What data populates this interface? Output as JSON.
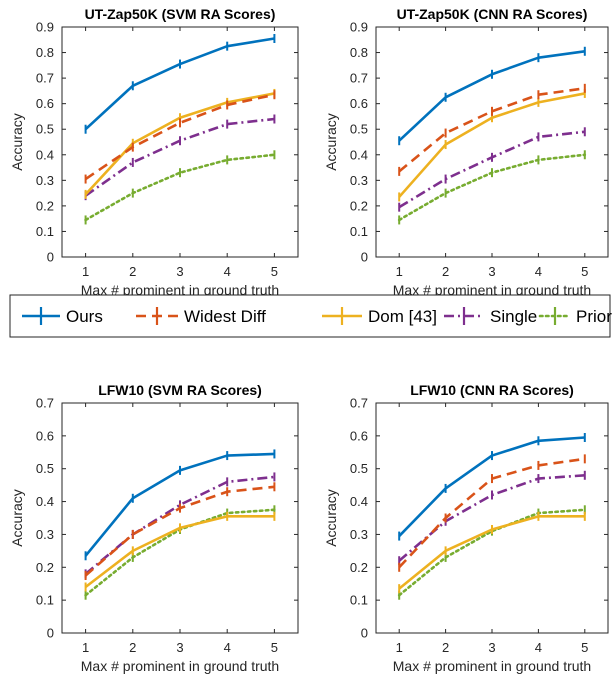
{
  "legend": {
    "items": [
      {
        "label": "Ours",
        "color": "#0072BD",
        "dash": "solid"
      },
      {
        "label": "Widest Diff",
        "color": "#D95319",
        "dash": "dashed"
      },
      {
        "label": "Dom [43]",
        "color": "#EDB120",
        "dash": "solid"
      },
      {
        "label": "Single",
        "color": "#7E2F8E",
        "dash": "dashdot"
      },
      {
        "label": "Prior",
        "color": "#77AC30",
        "dash": "dotted"
      }
    ]
  },
  "chart_data": [
    {
      "type": "line",
      "title": "UT-Zap50K (SVM RA Scores)",
      "xlabel": "Max # prominent in ground truth",
      "ylabel": "Accuracy",
      "x": [
        1,
        2,
        3,
        4,
        5
      ],
      "xlim": [
        0.5,
        5.5
      ],
      "ylim": [
        0,
        0.9
      ],
      "yticks": [
        "0",
        "0.1",
        "0.2",
        "0.3",
        "0.4",
        "0.5",
        "0.6",
        "0.7",
        "0.8",
        "0.9"
      ],
      "xticks": [
        "1",
        "2",
        "3",
        "4",
        "5"
      ],
      "grid": false,
      "series": [
        {
          "name": "Ours",
          "values": [
            0.5,
            0.67,
            0.755,
            0.825,
            0.855
          ]
        },
        {
          "name": "Widest Diff",
          "values": [
            0.305,
            0.43,
            0.525,
            0.595,
            0.635
          ]
        },
        {
          "name": "Dom [43]",
          "values": [
            0.245,
            0.445,
            0.545,
            0.605,
            0.64
          ]
        },
        {
          "name": "Single",
          "values": [
            0.24,
            0.37,
            0.455,
            0.52,
            0.54
          ]
        },
        {
          "name": "Prior",
          "values": [
            0.145,
            0.25,
            0.33,
            0.38,
            0.4
          ]
        }
      ]
    },
    {
      "type": "line",
      "title": "UT-Zap50K (CNN RA Scores)",
      "xlabel": "Max # prominent in ground truth",
      "ylabel": "Accuracy",
      "x": [
        1,
        2,
        3,
        4,
        5
      ],
      "xlim": [
        0.5,
        5.5
      ],
      "ylim": [
        0,
        0.9
      ],
      "yticks": [
        "0",
        "0.1",
        "0.2",
        "0.3",
        "0.4",
        "0.5",
        "0.6",
        "0.7",
        "0.8",
        "0.9"
      ],
      "xticks": [
        "1",
        "2",
        "3",
        "4",
        "5"
      ],
      "grid": false,
      "series": [
        {
          "name": "Ours",
          "values": [
            0.455,
            0.625,
            0.715,
            0.78,
            0.805
          ]
        },
        {
          "name": "Widest Diff",
          "values": [
            0.335,
            0.485,
            0.57,
            0.635,
            0.66
          ]
        },
        {
          "name": "Dom [43]",
          "values": [
            0.235,
            0.44,
            0.545,
            0.605,
            0.64
          ]
        },
        {
          "name": "Single",
          "values": [
            0.195,
            0.305,
            0.39,
            0.47,
            0.49
          ]
        },
        {
          "name": "Prior",
          "values": [
            0.145,
            0.25,
            0.33,
            0.38,
            0.4
          ]
        }
      ]
    },
    {
      "type": "line",
      "title": "LFW10 (SVM RA Scores)",
      "xlabel": "Max # prominent in ground truth",
      "ylabel": "Accuracy",
      "x": [
        1,
        2,
        3,
        4,
        5
      ],
      "xlim": [
        0.5,
        5.5
      ],
      "ylim": [
        0,
        0.7
      ],
      "yticks": [
        "0",
        "0.1",
        "0.2",
        "0.3",
        "0.4",
        "0.5",
        "0.6",
        "0.7"
      ],
      "xticks": [
        "1",
        "2",
        "3",
        "4",
        "5"
      ],
      "grid": false,
      "series": [
        {
          "name": "Ours",
          "values": [
            0.235,
            0.41,
            0.495,
            0.54,
            0.545
          ]
        },
        {
          "name": "Widest Diff",
          "values": [
            0.175,
            0.3,
            0.38,
            0.43,
            0.445
          ]
        },
        {
          "name": "Dom [43]",
          "values": [
            0.14,
            0.25,
            0.32,
            0.355,
            0.355
          ]
        },
        {
          "name": "Single",
          "values": [
            0.18,
            0.3,
            0.39,
            0.46,
            0.475
          ]
        },
        {
          "name": "Prior",
          "values": [
            0.115,
            0.23,
            0.315,
            0.365,
            0.375
          ]
        }
      ]
    },
    {
      "type": "line",
      "title": "LFW10 (CNN RA Scores)",
      "xlabel": "Max # prominent in ground truth",
      "ylabel": "Accuracy",
      "x": [
        1,
        2,
        3,
        4,
        5
      ],
      "xlim": [
        0.5,
        5.5
      ],
      "ylim": [
        0,
        0.7
      ],
      "yticks": [
        "0",
        "0.1",
        "0.2",
        "0.3",
        "0.4",
        "0.5",
        "0.6",
        "0.7"
      ],
      "xticks": [
        "1",
        "2",
        "3",
        "4",
        "5"
      ],
      "grid": false,
      "series": [
        {
          "name": "Ours",
          "values": [
            0.295,
            0.44,
            0.54,
            0.585,
            0.595
          ]
        },
        {
          "name": "Widest Diff",
          "values": [
            0.2,
            0.35,
            0.47,
            0.51,
            0.53
          ]
        },
        {
          "name": "Dom [43]",
          "values": [
            0.135,
            0.25,
            0.315,
            0.355,
            0.355
          ]
        },
        {
          "name": "Single",
          "values": [
            0.22,
            0.34,
            0.42,
            0.47,
            0.48
          ]
        },
        {
          "name": "Prior",
          "values": [
            0.115,
            0.23,
            0.31,
            0.365,
            0.375
          ]
        }
      ]
    }
  ]
}
